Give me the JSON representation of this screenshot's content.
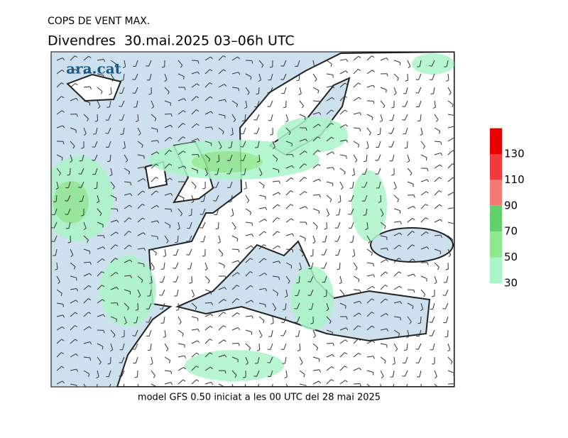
{
  "header": {
    "title": "COPS DE VENT MAX.",
    "subtitle": "Divendres  30.mai.2025 03–06h UTC"
  },
  "logo": "ara.cat",
  "footer": "model GFS 0.50 iniciat a les 00 UTC del 28 mai 2025",
  "legend": {
    "ticks": [
      30,
      50,
      70,
      90,
      110,
      130
    ],
    "colors": [
      "#aaf5c8",
      "#8ee88e",
      "#62cf6a",
      "#f47a7a",
      "#f03c3c",
      "#e60000"
    ]
  }
}
